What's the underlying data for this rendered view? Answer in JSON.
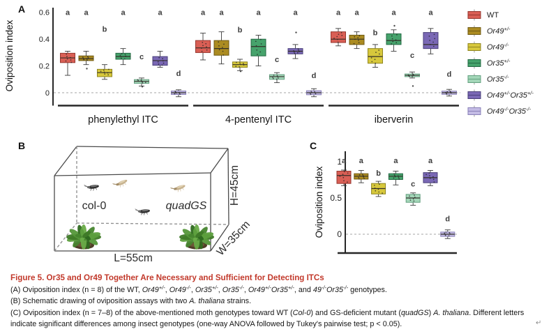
{
  "panels": {
    "a_label": "A",
    "b_label": "B",
    "c_label": "C"
  },
  "legend": {
    "items": [
      {
        "key": "WT",
        "segments": [
          {
            "t": "WT"
          }
        ],
        "fill": "#D95F55",
        "stroke": "#96362E"
      },
      {
        "key": "Or49+/-",
        "segments": [
          {
            "t": "Or49",
            "i": 1
          },
          {
            "t": "+/-",
            "i": 1,
            "sup": 1
          }
        ],
        "fill": "#AB8B21",
        "stroke": "#6F5A13"
      },
      {
        "key": "Or49-/-",
        "segments": [
          {
            "t": "Or49",
            "i": 1
          },
          {
            "t": "-/-",
            "i": 1,
            "sup": 1
          }
        ],
        "fill": "#D7C83C",
        "stroke": "#8F851E"
      },
      {
        "key": "Or35+/-",
        "segments": [
          {
            "t": "Or35",
            "i": 1
          },
          {
            "t": "+/-",
            "i": 1,
            "sup": 1
          }
        ],
        "fill": "#46A36C",
        "stroke": "#226842"
      },
      {
        "key": "Or35-/-",
        "segments": [
          {
            "t": "Or35",
            "i": 1
          },
          {
            "t": "-/-",
            "i": 1,
            "sup": 1
          }
        ],
        "fill": "#A3D6B8",
        "stroke": "#63A07F"
      },
      {
        "key": "Or49+/-Or35+/-",
        "segments": [
          {
            "t": "Or49",
            "i": 1
          },
          {
            "t": "+/-",
            "i": 1,
            "sup": 1
          },
          {
            "t": "Or35",
            "i": 1
          },
          {
            "t": "+/-",
            "i": 1,
            "sup": 1
          }
        ],
        "fill": "#7A68B5",
        "stroke": "#4A3F7A"
      },
      {
        "key": "Or49-/-Or35-/-",
        "segments": [
          {
            "t": "Or49",
            "i": 1
          },
          {
            "t": "-/-",
            "i": 1,
            "sup": 1
          },
          {
            "t": "Or35",
            "i": 1
          },
          {
            "t": "-/-",
            "i": 1,
            "sup": 1
          }
        ],
        "fill": "#C3BBE4",
        "stroke": "#8A81B8"
      }
    ]
  },
  "panel_b": {
    "left_plant_label": "col-0",
    "right_plant_label": "quadGS",
    "length_label": "L=55cm",
    "height_label": "H=45cm",
    "width_label": "W=35cm"
  },
  "caption": {
    "title": "Figure 5. Or35 and Or49 Together Are Necessary and Sufficient for Detecting ITCs",
    "title_color": "#C2392B",
    "lines": [
      [
        {
          "t": "(A) Oviposition index (n = 8) of the WT, "
        },
        {
          "t": "Or49",
          "i": 1
        },
        {
          "t": "+/-",
          "i": 1,
          "sup": 1
        },
        {
          "t": ", "
        },
        {
          "t": "Or49",
          "i": 1
        },
        {
          "t": "-/-",
          "i": 1,
          "sup": 1
        },
        {
          "t": ", "
        },
        {
          "t": "Or35",
          "i": 1
        },
        {
          "t": "+/-",
          "i": 1,
          "sup": 1
        },
        {
          "t": ", "
        },
        {
          "t": "Or35",
          "i": 1
        },
        {
          "t": "-/-",
          "i": 1,
          "sup": 1
        },
        {
          "t": ", "
        },
        {
          "t": "Or49",
          "i": 1
        },
        {
          "t": "+/-",
          "i": 1,
          "sup": 1
        },
        {
          "t": "Or35",
          "i": 1
        },
        {
          "t": "+/-",
          "i": 1,
          "sup": 1
        },
        {
          "t": ", and "
        },
        {
          "t": "49",
          "i": 1
        },
        {
          "t": "-/-",
          "i": 1,
          "sup": 1
        },
        {
          "t": "Or35",
          "i": 1
        },
        {
          "t": "-/-",
          "i": 1,
          "sup": 1
        },
        {
          "t": " genotypes."
        }
      ],
      [
        {
          "t": "(B) Schematic drawing of oviposition assays with two "
        },
        {
          "t": "A. thaliana",
          "i": 1
        },
        {
          "t": " strains."
        }
      ],
      [
        {
          "t": "(C) Oviposition index (n = 7–8) of the above-mentioned moth genotypes toward WT ("
        },
        {
          "t": "Col-0",
          "i": 1
        },
        {
          "t": ") and GS-deficient mutant ("
        },
        {
          "t": "quadGS",
          "i": 1
        },
        {
          "t": ") "
        },
        {
          "t": "A. thaliana",
          "i": 1
        },
        {
          "t": ". Different letters indicate significant differences among insect genotypes (one-way ANOVA followed by Tukey's pairwise test; p < 0.05)."
        }
      ]
    ]
  },
  "artifact": {
    "return_glyph": "↵"
  },
  "chart_data": [
    {
      "id": "A",
      "type": "boxplot",
      "ylabel": "Oviposition index",
      "yticks": [
        0,
        0.2,
        0.4,
        0.6
      ],
      "ytick_labels": [
        "0",
        "0.2",
        "0.4",
        "0.6"
      ],
      "ylim": [
        -0.07,
        0.63
      ],
      "zero_line_dashed": true,
      "categories": [
        "phenylethyl ITC",
        "4-pentenyl ITC",
        "iberverin"
      ],
      "groups": [
        {
          "label": "phenylethyl ITC",
          "boxes": [
            {
              "genotype": "WT",
              "low": 0.13,
              "q1": 0.225,
              "median": 0.26,
              "q3": 0.295,
              "high": 0.31,
              "letter": "a",
              "letter_v": 0.58,
              "outliers": []
            },
            {
              "genotype": "Or49+/-",
              "low": 0.21,
              "q1": 0.24,
              "median": 0.255,
              "q3": 0.275,
              "high": 0.31,
              "letter": "a",
              "letter_v": 0.58,
              "outliers": [
                0.18
              ]
            },
            {
              "genotype": "Or49-/-",
              "low": 0.1,
              "q1": 0.12,
              "median": 0.15,
              "q3": 0.175,
              "high": 0.21,
              "letter": "b",
              "letter_v": 0.455,
              "outliers": []
            },
            {
              "genotype": "Or35+/-",
              "low": 0.21,
              "q1": 0.25,
              "median": 0.27,
              "q3": 0.295,
              "high": 0.33,
              "letter": "a",
              "letter_v": 0.58,
              "outliers": []
            },
            {
              "genotype": "Or35-/-",
              "low": 0.05,
              "q1": 0.07,
              "median": 0.085,
              "q3": 0.098,
              "high": 0.11,
              "letter": "c",
              "letter_v": 0.25,
              "outliers": [
                0.045
              ]
            },
            {
              "genotype": "Or49+/-Or35+/-",
              "low": 0.19,
              "q1": 0.205,
              "median": 0.24,
              "q3": 0.27,
              "high": 0.31,
              "letter": "a",
              "letter_v": 0.58,
              "outliers": []
            },
            {
              "genotype": "Or49-/-Or35-/-",
              "low": -0.03,
              "q1": -0.013,
              "median": 0.0,
              "q3": 0.013,
              "high": 0.022,
              "letter": "d",
              "letter_v": 0.125,
              "outliers": []
            }
          ]
        },
        {
          "label": "4-pentenyl ITC",
          "boxes": [
            {
              "genotype": "WT",
              "low": 0.245,
              "q1": 0.3,
              "median": 0.335,
              "q3": 0.39,
              "high": 0.445,
              "letter": "a",
              "letter_v": 0.58,
              "outliers": []
            },
            {
              "genotype": "Or49+/-",
              "low": 0.215,
              "q1": 0.28,
              "median": 0.33,
              "q3": 0.39,
              "high": 0.455,
              "letter": "a",
              "letter_v": 0.58,
              "outliers": []
            },
            {
              "genotype": "Or49-/-",
              "low": 0.165,
              "q1": 0.19,
              "median": 0.21,
              "q3": 0.23,
              "high": 0.25,
              "letter": "b",
              "letter_v": 0.45,
              "outliers": [
                0.16
              ]
            },
            {
              "genotype": "Or35+/-",
              "low": 0.2,
              "q1": 0.275,
              "median": 0.345,
              "q3": 0.4,
              "high": 0.43,
              "letter": "a",
              "letter_v": 0.58,
              "outliers": []
            },
            {
              "genotype": "Or35-/-",
              "low": 0.075,
              "q1": 0.1,
              "median": 0.12,
              "q3": 0.135,
              "high": 0.15,
              "letter": "c",
              "letter_v": 0.23,
              "outliers": []
            },
            {
              "genotype": "Or49+/-Or35+/-",
              "low": 0.255,
              "q1": 0.29,
              "median": 0.31,
              "q3": 0.33,
              "high": 0.36,
              "letter": "a",
              "letter_v": 0.58,
              "outliers": [
                0.45
              ]
            },
            {
              "genotype": "Or49-/-Or35-/-",
              "low": -0.03,
              "q1": -0.015,
              "median": 0.0,
              "q3": 0.015,
              "high": 0.03,
              "letter": "d",
              "letter_v": 0.11,
              "outliers": []
            }
          ]
        },
        {
          "label": "iberverin",
          "boxes": [
            {
              "genotype": "WT",
              "low": 0.35,
              "q1": 0.375,
              "median": 0.4,
              "q3": 0.455,
              "high": 0.48,
              "letter": "a",
              "letter_v": 0.58,
              "outliers": []
            },
            {
              "genotype": "Or49+/-",
              "low": 0.33,
              "q1": 0.36,
              "median": 0.4,
              "q3": 0.43,
              "high": 0.455,
              "letter": "a",
              "letter_v": 0.58,
              "outliers": []
            },
            {
              "genotype": "Or49-/-",
              "low": 0.19,
              "q1": 0.22,
              "median": 0.27,
              "q3": 0.33,
              "high": 0.36,
              "letter": "b",
              "letter_v": 0.43,
              "outliers": []
            },
            {
              "genotype": "Or35+/-",
              "low": 0.31,
              "q1": 0.36,
              "median": 0.39,
              "q3": 0.44,
              "high": 0.47,
              "letter": "a",
              "letter_v": 0.58,
              "outliers": [
                0.5
              ]
            },
            {
              "genotype": "Or35-/-",
              "low": 0.11,
              "q1": 0.12,
              "median": 0.13,
              "q3": 0.14,
              "high": 0.155,
              "letter": "c",
              "letter_v": 0.26,
              "outliers": [
                0.05
              ]
            },
            {
              "genotype": "Or49+/-Or35+/-",
              "low": 0.29,
              "q1": 0.33,
              "median": 0.36,
              "q3": 0.45,
              "high": 0.48,
              "letter": "a",
              "letter_v": 0.58,
              "outliers": []
            },
            {
              "genotype": "Or49-/-Or35-/-",
              "low": -0.025,
              "q1": -0.012,
              "median": 0.0,
              "q3": 0.012,
              "high": 0.025,
              "letter": "d",
              "letter_v": 0.12,
              "outliers": []
            }
          ]
        }
      ]
    },
    {
      "id": "C",
      "type": "boxplot",
      "ylabel": "Oviposition index",
      "yticks": [
        0,
        0.5,
        1
      ],
      "ytick_labels": [
        "0",
        "0.5",
        "1"
      ],
      "ylim": [
        -0.12,
        1.05
      ],
      "zero_line_dashed": true,
      "categories": [
        ""
      ],
      "groups": [
        {
          "label": "",
          "boxes": [
            {
              "genotype": "WT",
              "low": 0.67,
              "q1": 0.7,
              "median": 0.81,
              "q3": 0.87,
              "high": 0.885,
              "letter": "a",
              "letter_v": 0.98,
              "outliers": []
            },
            {
              "genotype": "Or49+/-",
              "low": 0.71,
              "q1": 0.76,
              "median": 0.8,
              "q3": 0.835,
              "high": 0.88,
              "letter": "a",
              "letter_v": 0.98,
              "outliers": []
            },
            {
              "genotype": "Or49-/-",
              "low": 0.52,
              "q1": 0.555,
              "median": 0.63,
              "q3": 0.7,
              "high": 0.73,
              "letter": "b",
              "letter_v": 0.81,
              "outliers": []
            },
            {
              "genotype": "Or35+/-",
              "low": 0.68,
              "q1": 0.755,
              "median": 0.8,
              "q3": 0.835,
              "high": 0.87,
              "letter": "a",
              "letter_v": 0.98,
              "outliers": []
            },
            {
              "genotype": "Or35-/-",
              "low": 0.4,
              "q1": 0.44,
              "median": 0.5,
              "q3": 0.55,
              "high": 0.57,
              "letter": "c",
              "letter_v": 0.66,
              "outliers": []
            },
            {
              "genotype": "Or49+/-Or35+/-",
              "low": 0.67,
              "q1": 0.71,
              "median": 0.78,
              "q3": 0.85,
              "high": 0.88,
              "letter": "a",
              "letter_v": 0.98,
              "outliers": []
            },
            {
              "genotype": "Or49-/-Or35-/-",
              "low": -0.06,
              "q1": -0.03,
              "median": 0.0,
              "q3": 0.03,
              "high": 0.06,
              "letter": "d",
              "letter_v": 0.18,
              "outliers": []
            }
          ]
        }
      ]
    }
  ]
}
